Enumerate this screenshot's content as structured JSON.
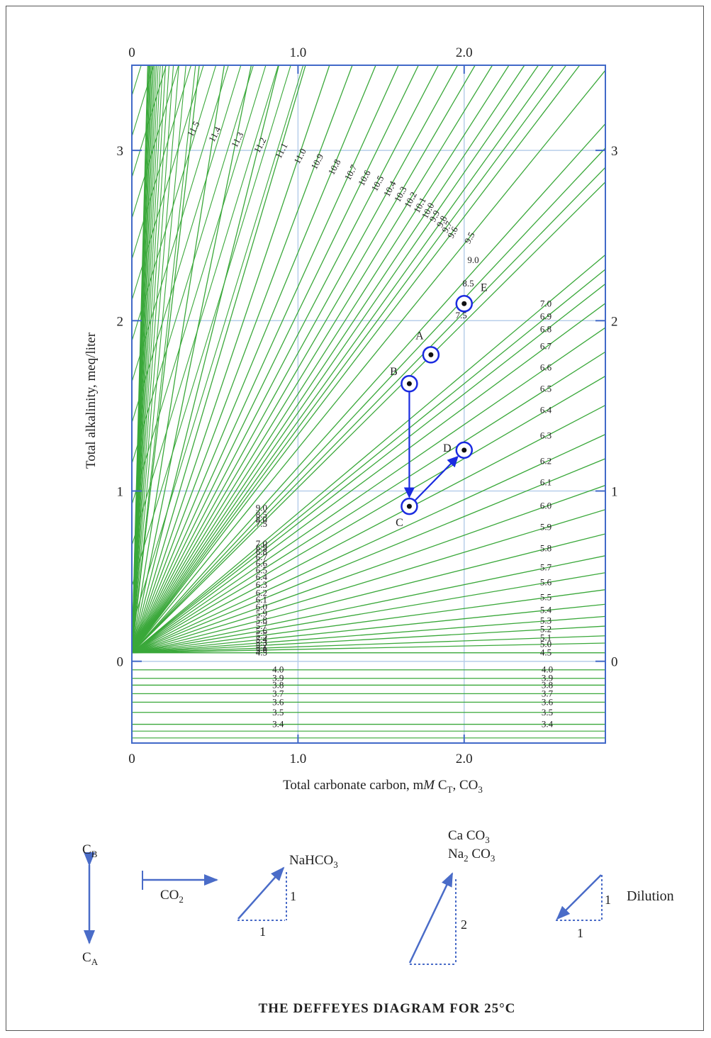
{
  "chart_data": {
    "type": "line",
    "title": "THE DEFFEYES DIAGRAM FOR 25°C",
    "xlabel": "Total carbonate carbon, mM C_T, CO3",
    "ylabel": "Total alkalinity, meq/liter",
    "xlim": [
      0,
      2.85
    ],
    "ylim": [
      -0.48,
      3.5
    ],
    "grid": true,
    "top_ticks": [
      "0",
      "1.0",
      "2.0"
    ],
    "bottom_ticks": [
      "0",
      "1.0",
      "2.0"
    ],
    "left_ticks": [
      "0",
      "1",
      "2",
      "3"
    ],
    "right_ticks": [
      "0",
      "1",
      "2",
      "3"
    ],
    "colors": {
      "isoline": "#3aa83a",
      "axis": "#4169c8",
      "grid": "#b8cfea",
      "points": "#1a2be0"
    },
    "series_note": "pH isolines",
    "ph_isolines": [
      {
        "pH": 11.5,
        "slope": 8.5
      },
      {
        "pH": 11.4,
        "slope": 6.2
      },
      {
        "pH": 11.3,
        "slope": 4.8
      },
      {
        "pH": 11.2,
        "slope": 3.9
      },
      {
        "pH": 11.1,
        "slope": 3.3
      },
      {
        "pH": 11.0,
        "slope": 2.9
      },
      {
        "pH": 10.9,
        "slope": 2.6
      },
      {
        "pH": 10.8,
        "slope": 2.35
      },
      {
        "pH": 10.7,
        "slope": 2.15
      },
      {
        "pH": 10.6,
        "slope": 2.0
      },
      {
        "pH": 10.5,
        "slope": 1.87
      },
      {
        "pH": 10.4,
        "slope": 1.76
      },
      {
        "pH": 10.3,
        "slope": 1.67
      },
      {
        "pH": 10.2,
        "slope": 1.59
      },
      {
        "pH": 10.1,
        "slope": 1.52
      },
      {
        "pH": 10.0,
        "slope": 1.46
      },
      {
        "pH": 9.9,
        "slope": 1.41
      },
      {
        "pH": 9.8,
        "slope": 1.36
      },
      {
        "pH": 9.7,
        "slope": 1.32
      },
      {
        "pH": 9.6,
        "slope": 1.28
      },
      {
        "pH": 9.5,
        "slope": 1.2
      },
      {
        "pH": 9.0,
        "slope": 1.09
      },
      {
        "pH": 8.5,
        "slope": 1.04
      },
      {
        "pH": 8.0,
        "slope": 1.0
      },
      {
        "pH": 7.5,
        "slope": 0.97
      },
      {
        "pH": 7.0,
        "slope": 0.82
      },
      {
        "pH": 6.9,
        "slope": 0.79
      },
      {
        "pH": 6.8,
        "slope": 0.76
      },
      {
        "pH": 6.7,
        "slope": 0.72
      },
      {
        "pH": 6.6,
        "slope": 0.67
      },
      {
        "pH": 6.5,
        "slope": 0.62
      },
      {
        "pH": 6.4,
        "slope": 0.57
      },
      {
        "pH": 6.3,
        "slope": 0.51
      },
      {
        "pH": 6.2,
        "slope": 0.45
      },
      {
        "pH": 6.1,
        "slope": 0.4
      },
      {
        "pH": 6.0,
        "slope": 0.345
      },
      {
        "pH": 5.9,
        "slope": 0.295
      },
      {
        "pH": 5.8,
        "slope": 0.245
      },
      {
        "pH": 5.7,
        "slope": 0.2
      },
      {
        "pH": 5.6,
        "slope": 0.165
      },
      {
        "pH": 5.5,
        "slope": 0.13
      },
      {
        "pH": 5.4,
        "slope": 0.1
      },
      {
        "pH": 5.3,
        "slope": 0.075
      },
      {
        "pH": 5.2,
        "slope": 0.055
      },
      {
        "pH": 5.1,
        "slope": 0.035
      },
      {
        "pH": 5.0,
        "slope": 0.02
      },
      {
        "pH": 4.5,
        "slope": 0.0
      }
    ],
    "low_ph_lines": [
      {
        "pH": 4.0,
        "alk": -0.05
      },
      {
        "pH": 3.9,
        "alk": -0.1
      },
      {
        "pH": 3.8,
        "alk": -0.14
      },
      {
        "pH": 3.7,
        "alk": -0.19
      },
      {
        "pH": 3.6,
        "alk": -0.24
      },
      {
        "pH": 3.5,
        "alk": -0.3
      },
      {
        "pH": 3.4,
        "alk": -0.37
      }
    ],
    "points": [
      {
        "label": "E",
        "x": 2.0,
        "y": 2.1
      },
      {
        "label": "A",
        "x": 1.8,
        "y": 1.8
      },
      {
        "label": "B",
        "x": 1.67,
        "y": 1.63
      },
      {
        "label": "C",
        "x": 1.67,
        "y": 0.91
      },
      {
        "label": "D",
        "x": 2.0,
        "y": 1.24
      }
    ],
    "arrows": [
      {
        "from": "B",
        "to": "C"
      },
      {
        "from": "C",
        "to": "D"
      }
    ]
  },
  "legend": {
    "cb": "C",
    "cb_sub": "B",
    "ca": "C",
    "ca_sub": "A",
    "co2": "CO",
    "co2_sub": "2",
    "nahco3": "NaHCO",
    "nahco3_sub": "3",
    "caco3_line1": "Ca CO",
    "caco3_line1_sub": "3",
    "caco3_line2a": "Na",
    "caco3_line2a_sub": "2",
    "caco3_line2b": " CO",
    "caco3_line2b_sub": "3",
    "one_a": "1",
    "one_b": "1",
    "two": "2",
    "dilution": "Dilution",
    "one_c": "1",
    "one_d": "1"
  }
}
